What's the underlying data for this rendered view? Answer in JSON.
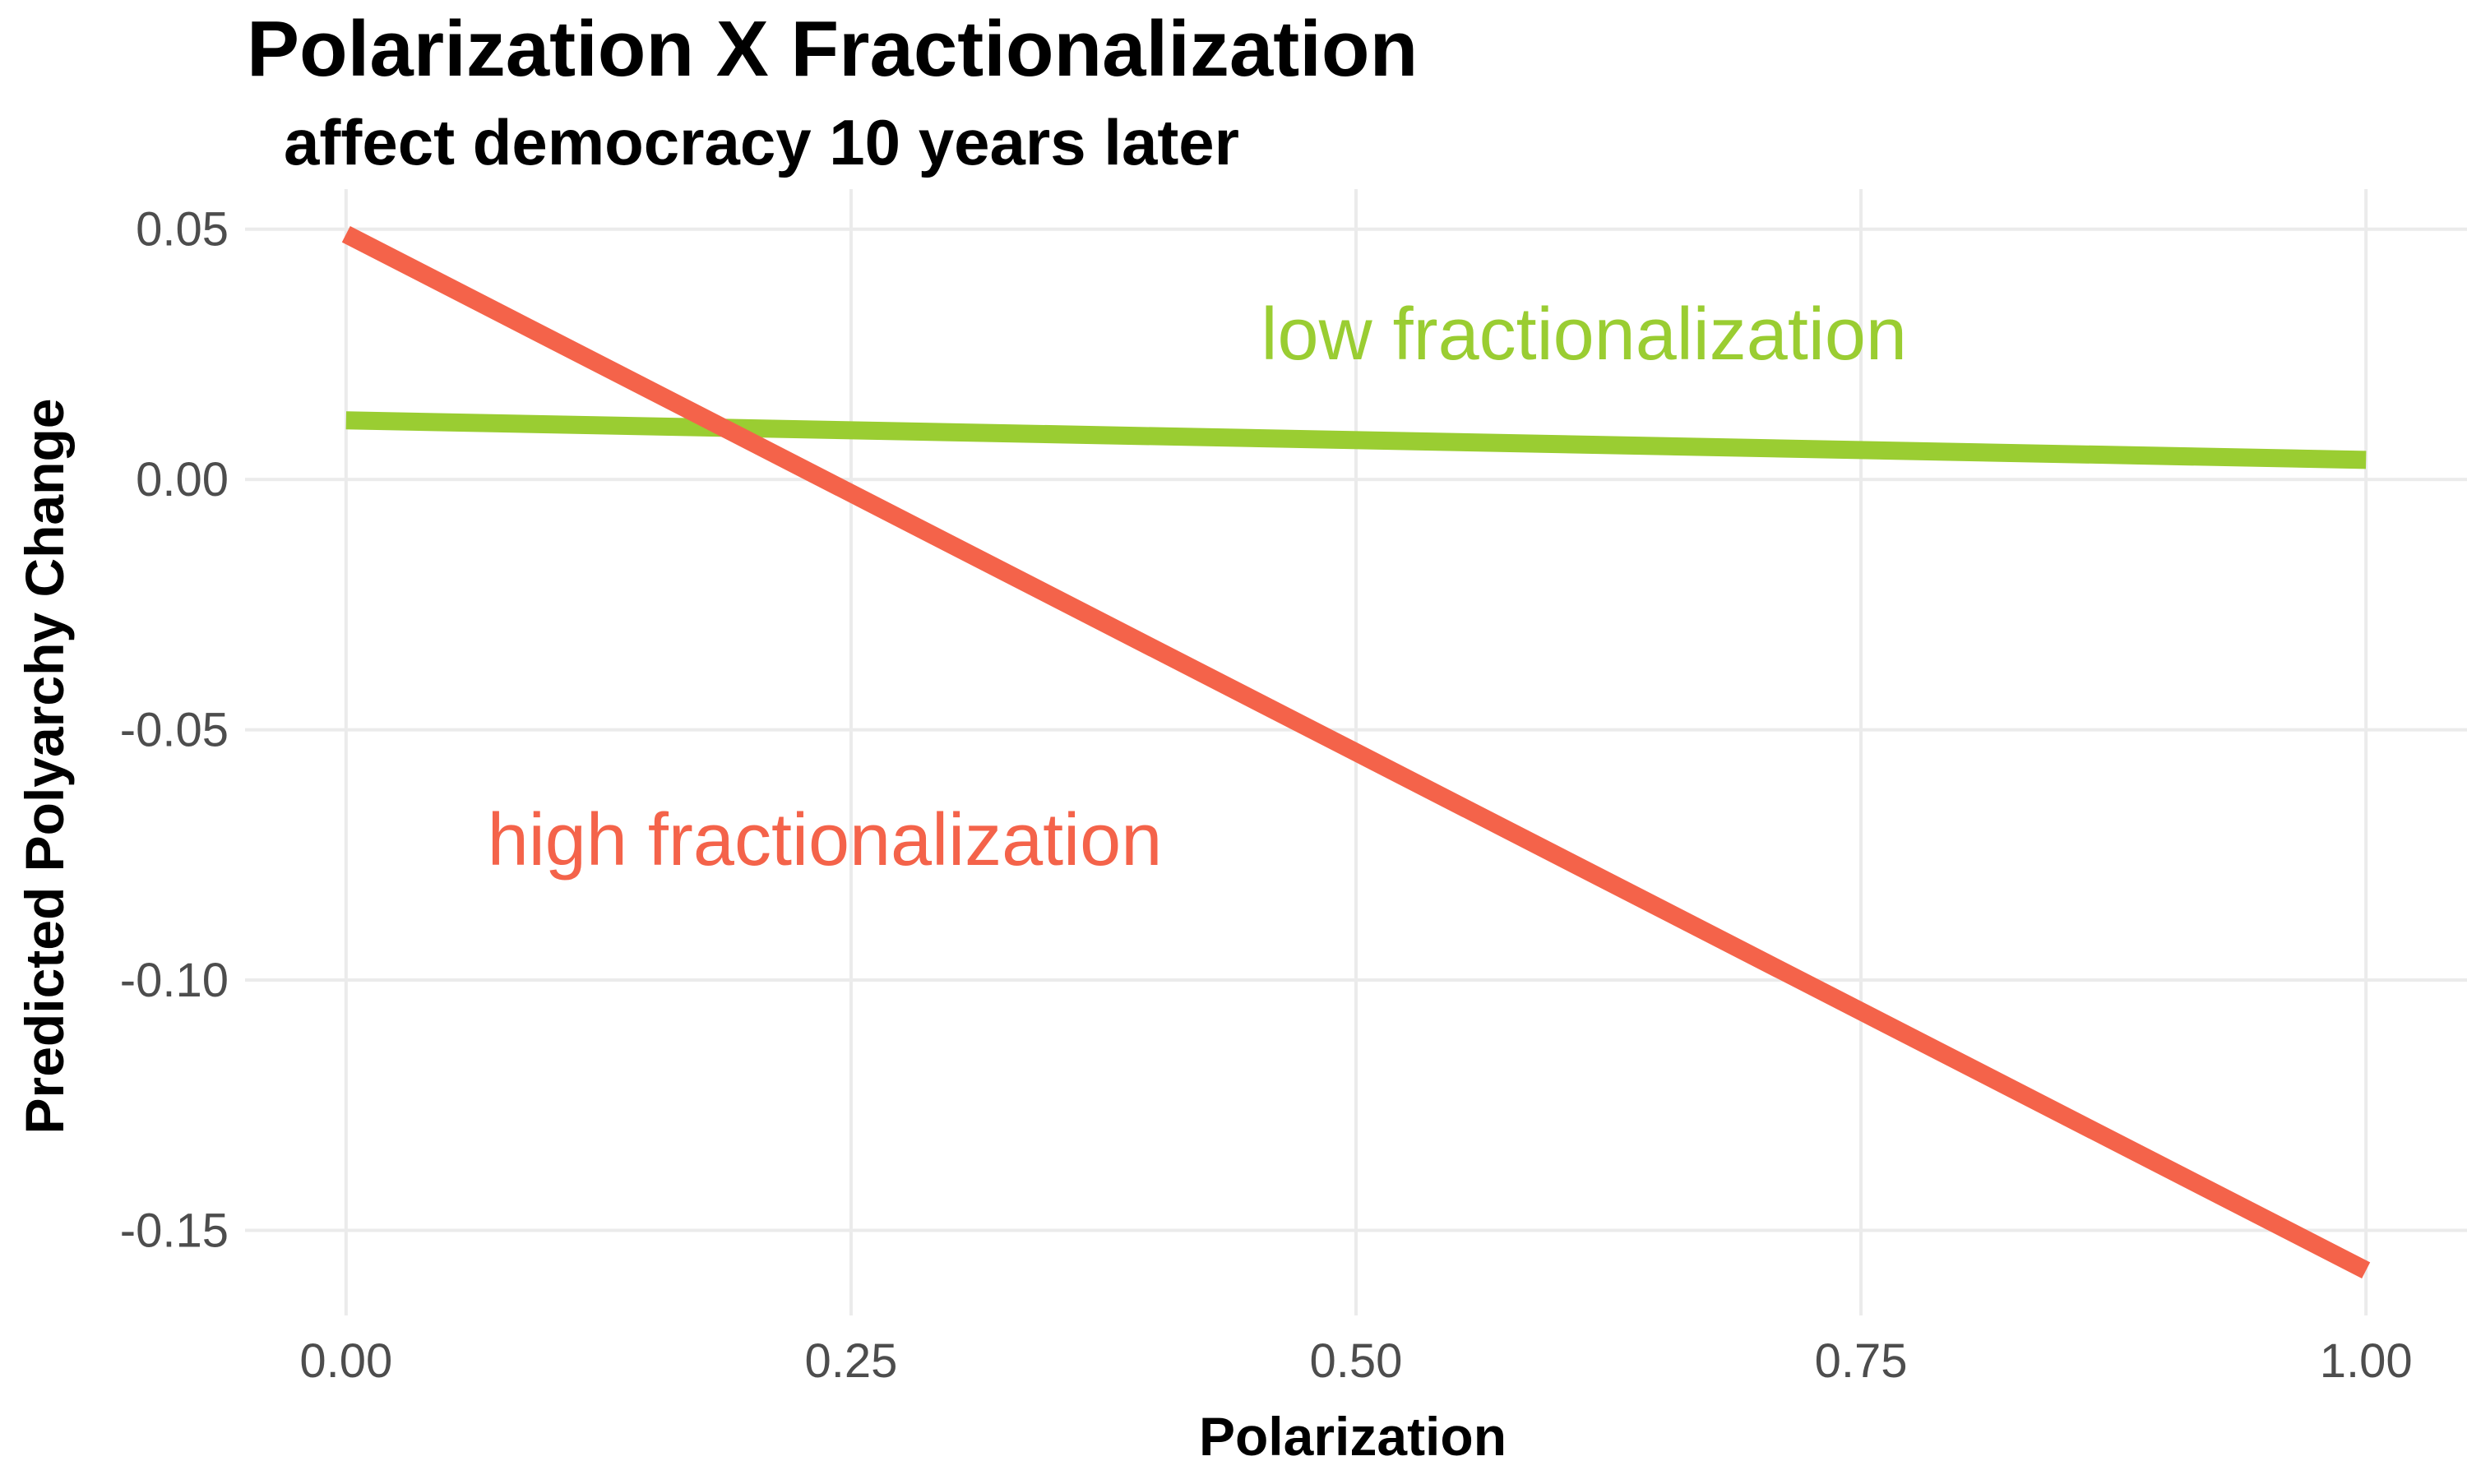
{
  "chart_data": {
    "type": "line",
    "title": "Polarization X Fractionalization",
    "subtitle": "affect democracy 10 years later",
    "xlabel": "Polarization",
    "ylabel": "Predicted Polyarchy Change",
    "xlim": [
      -0.05,
      1.05
    ],
    "ylim": [
      -0.167,
      0.058
    ],
    "x_ticks": [
      0.0,
      0.25,
      0.5,
      0.75,
      1.0
    ],
    "x_tick_labels": [
      "0.00",
      "0.25",
      "0.50",
      "0.75",
      "1.00"
    ],
    "y_ticks": [
      0.05,
      0.0,
      -0.05,
      -0.1,
      -0.15
    ],
    "y_tick_labels": [
      "0.05",
      "0.00",
      "-0.05",
      "-0.10",
      "-0.15"
    ],
    "grid": true,
    "legend": "none (direct labels)",
    "series": [
      {
        "name": "low fractionalization",
        "color": "#9acd32",
        "x": [
          0.0,
          1.0
        ],
        "y": [
          0.0118,
          0.0039
        ],
        "label_pos": [
          0.453,
          0.024
        ]
      },
      {
        "name": "high fractionalization",
        "color": "#f4634a",
        "x": [
          0.0,
          1.0
        ],
        "y": [
          0.049,
          -0.158
        ],
        "label_pos": [
          0.07,
          -0.077
        ]
      }
    ]
  }
}
